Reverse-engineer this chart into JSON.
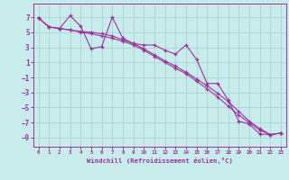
{
  "xlabel": "Windchill (Refroidissement éolien,°C)",
  "bg_color": "#c8ecec",
  "grid_color": "#aad4d4",
  "line_color": "#993399",
  "xlim": [
    -0.5,
    23.5
  ],
  "ylim": [
    -10.2,
    8.8
  ],
  "yticks": [
    -9,
    -7,
    -5,
    -3,
    -1,
    1,
    3,
    5,
    7
  ],
  "xticks": [
    0,
    1,
    2,
    3,
    4,
    5,
    6,
    7,
    8,
    9,
    10,
    11,
    12,
    13,
    14,
    15,
    16,
    17,
    18,
    19,
    20,
    21,
    22,
    23
  ],
  "line1_x": [
    0,
    1,
    2,
    3,
    4,
    5,
    6,
    7,
    8,
    9,
    10,
    11,
    12,
    13,
    14,
    15,
    16,
    17,
    18,
    19,
    20,
    21,
    22,
    23
  ],
  "line1_y": [
    6.9,
    5.7,
    5.5,
    7.2,
    5.8,
    2.8,
    3.1,
    7.0,
    4.2,
    3.5,
    3.3,
    3.3,
    2.6,
    2.1,
    3.3,
    1.4,
    -1.8,
    -1.8,
    -4.0,
    -6.8,
    -7.2,
    -8.5,
    -8.6,
    -8.4
  ],
  "line2_x": [
    0,
    1,
    2,
    3,
    4,
    5,
    6,
    7,
    8,
    9,
    10,
    11,
    12,
    13,
    14,
    15,
    16,
    17,
    18,
    19,
    20,
    21,
    22,
    23
  ],
  "line2_y": [
    6.9,
    5.7,
    5.5,
    5.3,
    5.1,
    5.0,
    4.8,
    4.5,
    4.0,
    3.5,
    2.8,
    2.0,
    1.2,
    0.5,
    -0.3,
    -1.2,
    -2.1,
    -3.1,
    -4.2,
    -5.5,
    -6.8,
    -7.8,
    -8.6,
    -8.4
  ],
  "line3_x": [
    0,
    1,
    2,
    3,
    4,
    5,
    6,
    7,
    8,
    9,
    10,
    11,
    12,
    13,
    14,
    15,
    16,
    17,
    18,
    19,
    20,
    21,
    22,
    23
  ],
  "line3_y": [
    6.9,
    5.7,
    5.5,
    5.3,
    5.0,
    4.8,
    4.5,
    4.2,
    3.8,
    3.3,
    2.6,
    1.8,
    1.0,
    0.2,
    -0.5,
    -1.5,
    -2.5,
    -3.6,
    -4.8,
    -6.0,
    -7.0,
    -8.0,
    -8.6,
    -8.4
  ]
}
